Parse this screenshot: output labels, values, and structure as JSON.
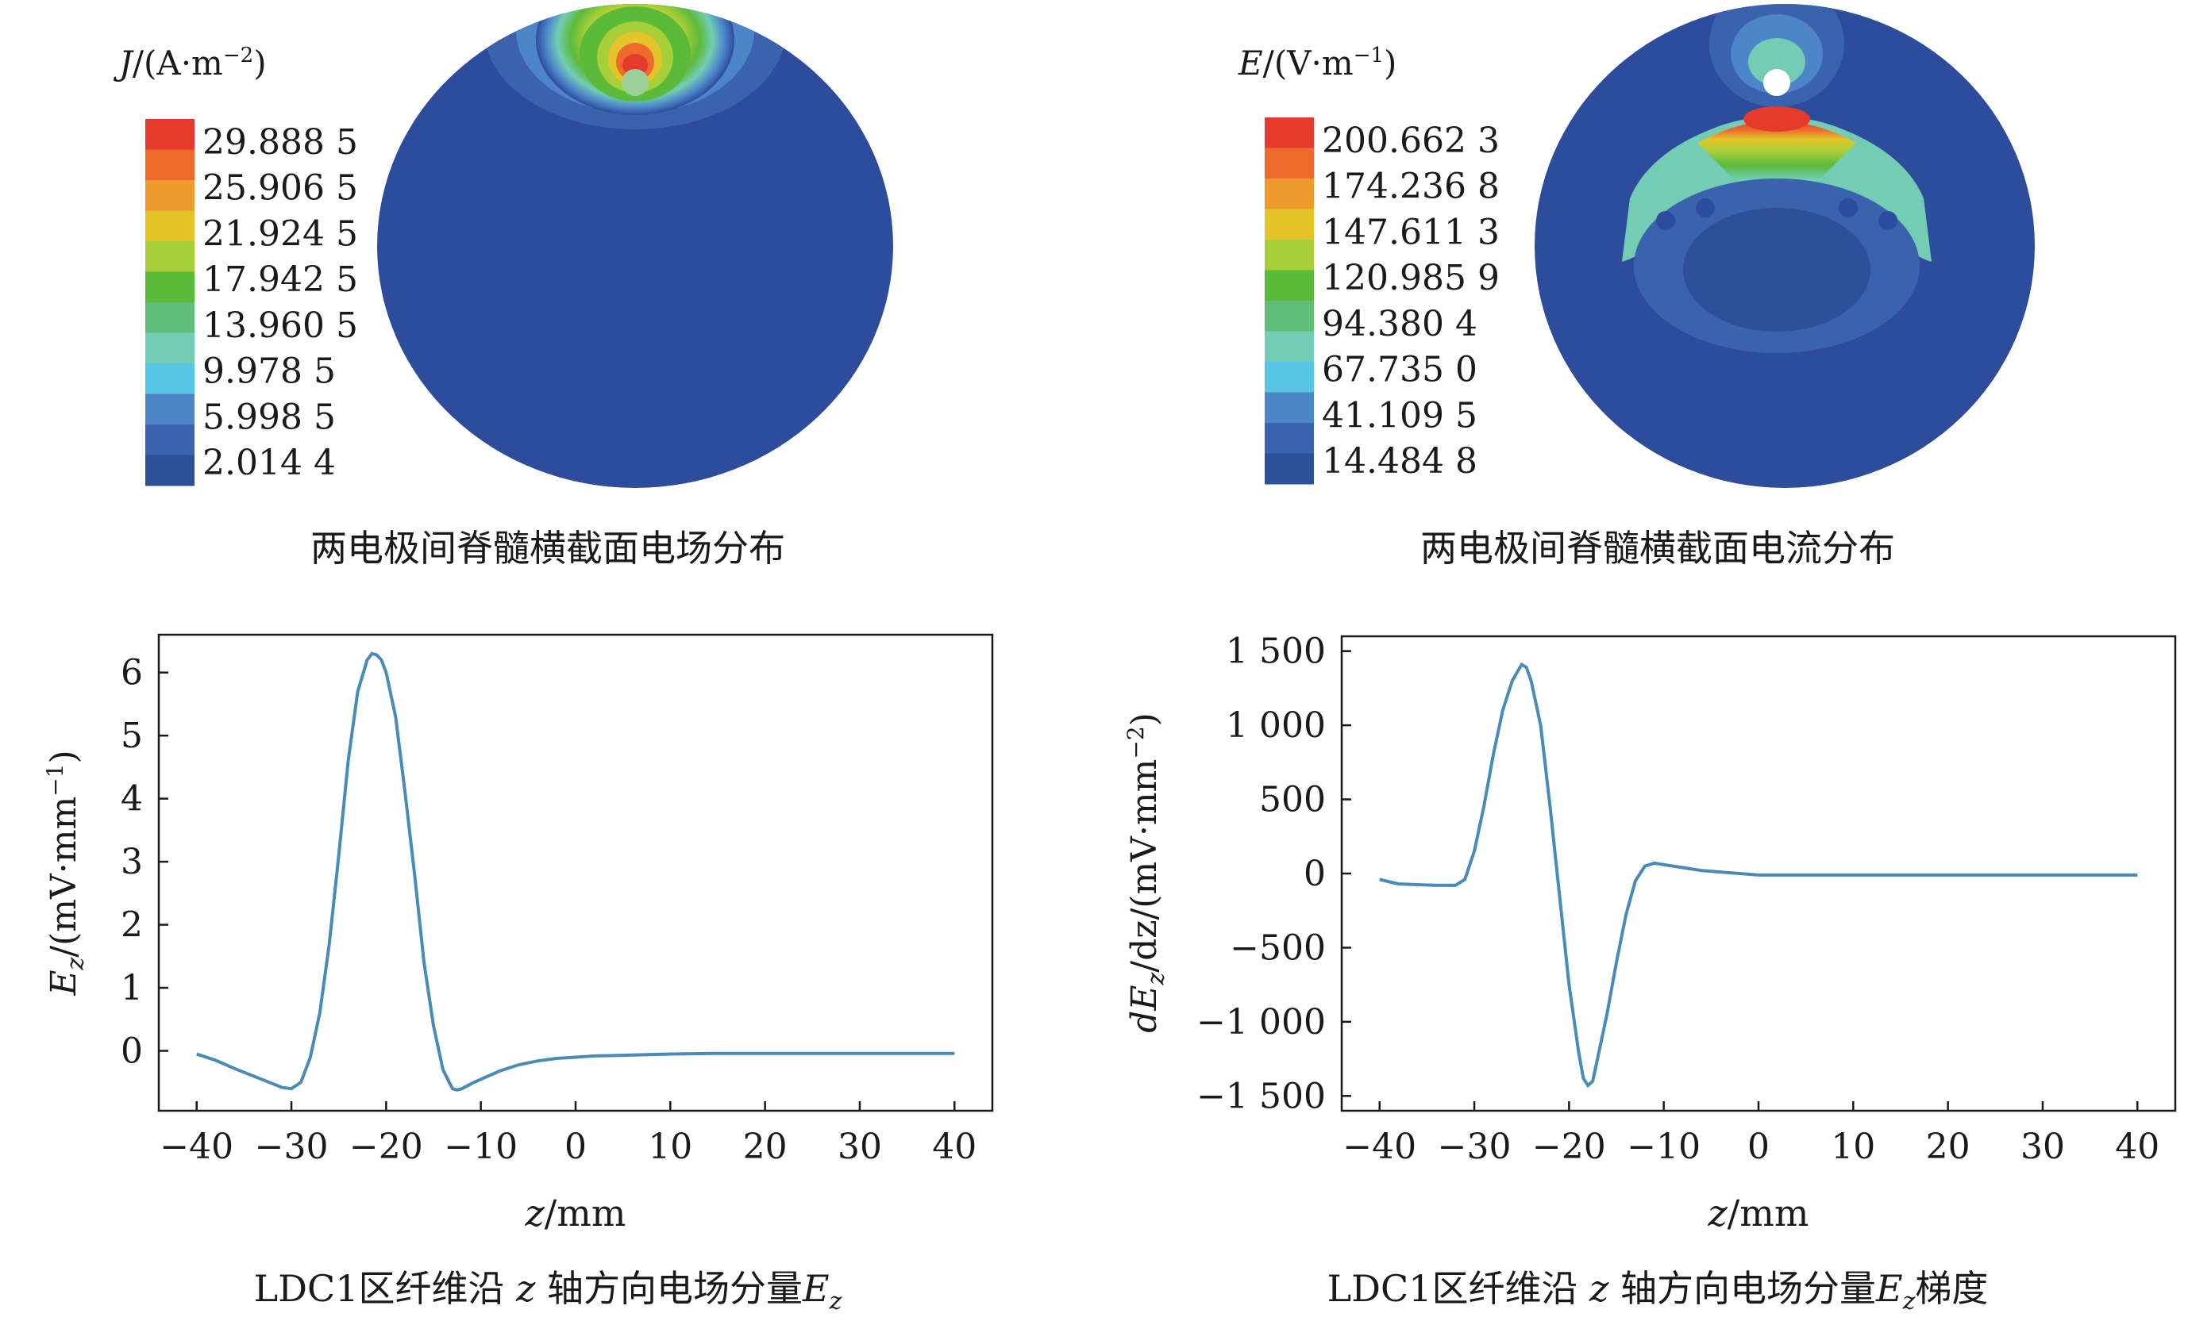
{
  "colors": {
    "contour_scale": [
      "#2e4f9a",
      "#3b63ad",
      "#4c86c9",
      "#58c6e3",
      "#73cdb4",
      "#60be78",
      "#5cba3a",
      "#a7cf37",
      "#e3c52a",
      "#ef9a2d",
      "#ee6a2c",
      "#e53a2e"
    ],
    "background_field": "#2e4c9c",
    "line": "#4a8ab6",
    "axis": "#1a1a1a"
  },
  "chart_data": [
    {
      "type": "heatmap",
      "caption": "两电极间脊髓横截面电场分布",
      "colorbar_title": {
        "symbol": "J",
        "unit_open": "/(A·m",
        "unit_exp": "−2",
        "unit_close": ")"
      },
      "colorbar_levels": [
        "29.888 5",
        "25.906 5",
        "21.924 5",
        "17.942 5",
        "13.960 5",
        "9.978 5",
        "5.998 5",
        "2.014 4"
      ],
      "colorbar_values": [
        29.8885,
        25.9065,
        21.9245,
        17.9425,
        13.9605,
        9.9785,
        5.9985,
        2.0144
      ]
    },
    {
      "type": "heatmap",
      "caption": "两电极间脊髓横截面电流分布",
      "colorbar_title": {
        "symbol": "E",
        "unit_open": "/(V·m",
        "unit_exp": "−1",
        "unit_close": ")"
      },
      "colorbar_levels": [
        "200.662 3",
        "174.236 8",
        "147.611 3",
        "120.985 9",
        "94.380 4",
        "67.735 0",
        "41.109 5",
        "14.484 8"
      ],
      "colorbar_values": [
        200.6623,
        174.2368,
        147.6113,
        120.9859,
        94.3804,
        67.735,
        41.1095,
        14.4848
      ]
    },
    {
      "type": "line",
      "caption_prefix": "LDC1区纤维沿 ",
      "caption_var": "z",
      "caption_mid": " 轴方向电场分量",
      "caption_sym": "E",
      "caption_sub": "z",
      "caption_suffix": "",
      "xlabel_var": "z",
      "xlabel_unit": "/mm",
      "ylabel_sym": "E",
      "ylabel_sub": "z",
      "ylabel_unit": "/(mV·mm",
      "ylabel_exp": "−1",
      "ylabel_close": ")",
      "xlim": [
        -44,
        44
      ],
      "ylim": [
        -0.95,
        6.6
      ],
      "xticks": [
        -40,
        -30,
        -20,
        -10,
        0,
        10,
        20,
        30,
        40
      ],
      "xtick_labels": [
        "−40",
        "−30",
        "−20",
        "−10",
        "0",
        "10",
        "20",
        "30",
        "40"
      ],
      "yticks": [
        0,
        1,
        2,
        3,
        4,
        5,
        6
      ],
      "ytick_labels": [
        "0",
        "1",
        "2",
        "3",
        "4",
        "5",
        "6"
      ],
      "series": [
        {
          "x": [
            -40,
            -38,
            -36,
            -34,
            -32,
            -31,
            -30,
            -29,
            -28,
            -27,
            -26,
            -25,
            -24,
            -23,
            -22,
            -21.5,
            -21,
            -20.5,
            -20,
            -19,
            -18,
            -17,
            -16,
            -15,
            -14,
            -13,
            -12.5,
            -12,
            -11,
            -10,
            -8,
            -6,
            -4,
            -2,
            0,
            2,
            5,
            10,
            15,
            20,
            25,
            30,
            35,
            40
          ],
          "y": [
            -0.05,
            -0.15,
            -0.28,
            -0.4,
            -0.52,
            -0.58,
            -0.6,
            -0.5,
            -0.1,
            0.6,
            1.7,
            3.1,
            4.6,
            5.7,
            6.2,
            6.3,
            6.28,
            6.2,
            6.0,
            5.3,
            4.1,
            2.8,
            1.4,
            0.4,
            -0.3,
            -0.6,
            -0.62,
            -0.6,
            -0.52,
            -0.45,
            -0.32,
            -0.22,
            -0.16,
            -0.12,
            -0.1,
            -0.08,
            -0.07,
            -0.05,
            -0.04,
            -0.04,
            -0.04,
            -0.04,
            -0.04,
            -0.04
          ]
        }
      ]
    },
    {
      "type": "line",
      "caption_prefix": "LDC1区纤维沿 ",
      "caption_var": "z",
      "caption_mid": " 轴方向电场分量",
      "caption_sym": "E",
      "caption_sub": "z",
      "caption_suffix": "梯度",
      "xlabel_var": "z",
      "xlabel_unit": "/mm",
      "ylabel_sym": "dE",
      "ylabel_sub": "z",
      "ylabel_unit": "/dz/(mV·mm",
      "ylabel_exp": "−2",
      "ylabel_close": ")",
      "xlim": [
        -44,
        44
      ],
      "ylim": [
        -1600,
        1600
      ],
      "xticks": [
        -40,
        -30,
        -20,
        -10,
        0,
        10,
        20,
        30,
        40
      ],
      "xtick_labels": [
        "−40",
        "−30",
        "−20",
        "−10",
        "0",
        "10",
        "20",
        "30",
        "40"
      ],
      "yticks": [
        1500,
        1000,
        500,
        0,
        -500,
        -1000,
        -1500
      ],
      "ytick_labels": [
        "1 500",
        "1 000",
        "500",
        "0",
        "−500",
        "−1 000",
        "−1 500"
      ],
      "series": [
        {
          "x": [
            -40,
            -38,
            -36,
            -34,
            -32,
            -31,
            -30,
            -29,
            -28,
            -27,
            -26,
            -25,
            -24.5,
            -24,
            -23,
            -22,
            -21,
            -20,
            -19,
            -18.5,
            -18,
            -17.5,
            -17,
            -16,
            -15,
            -14,
            -13,
            -12,
            -11,
            -10,
            -8,
            -6,
            -4,
            -2,
            0,
            5,
            10,
            20,
            30,
            40
          ],
          "y": [
            -40,
            -70,
            -75,
            -80,
            -80,
            -40,
            150,
            450,
            800,
            1100,
            1300,
            1410,
            1390,
            1300,
            1000,
            450,
            -150,
            -750,
            -1200,
            -1380,
            -1430,
            -1400,
            -1250,
            -950,
            -600,
            -280,
            -50,
            50,
            70,
            60,
            40,
            20,
            10,
            0,
            -10,
            -10,
            -10,
            -10,
            -10,
            -10
          ]
        }
      ]
    }
  ]
}
